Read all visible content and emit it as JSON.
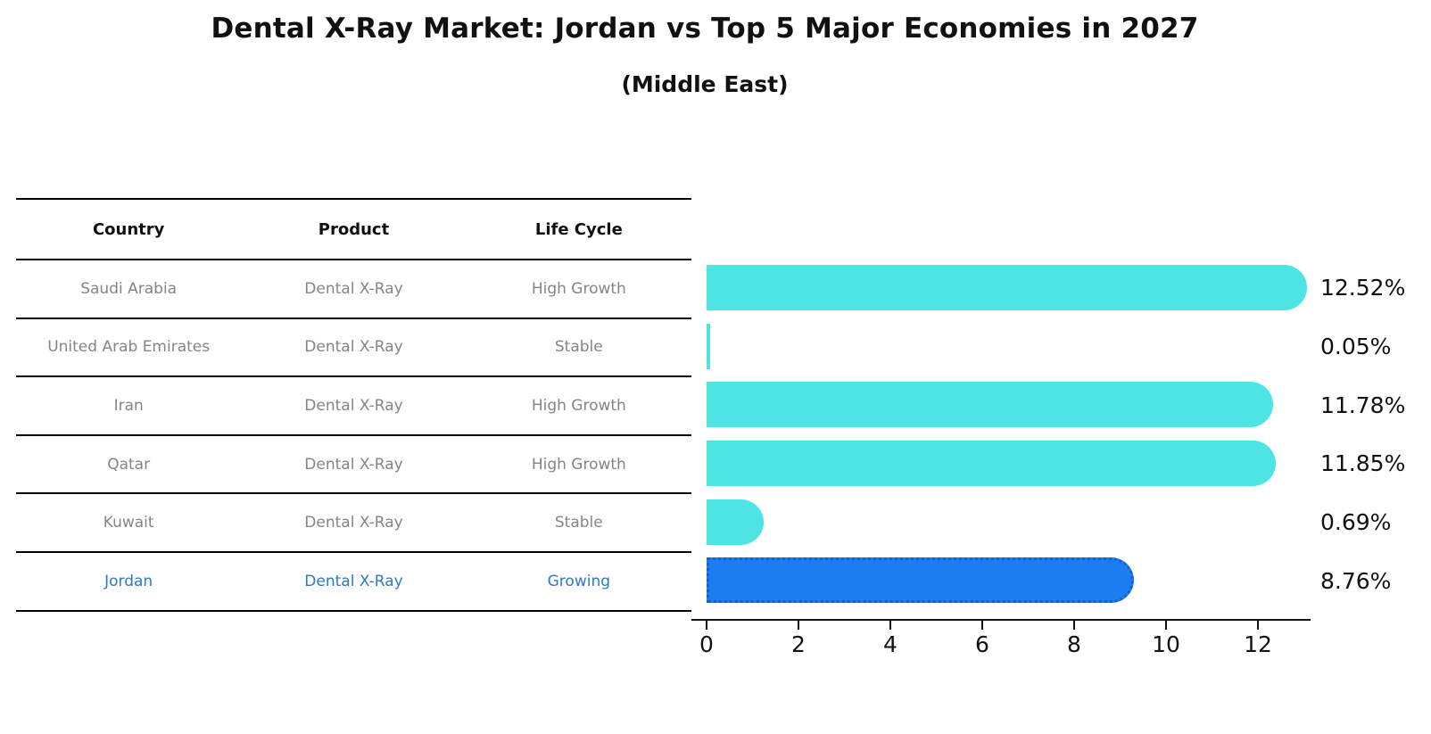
{
  "chart_data": {
    "type": "bar",
    "orientation": "horizontal",
    "title": "Dental X-Ray Market: Jordan vs Top 5 Major Economies in 2027",
    "subtitle": "(Middle East)",
    "categories": [
      "Saudi Arabia",
      "United Arab Emirates",
      "Iran",
      "Qatar",
      "Kuwait",
      "Jordan"
    ],
    "values": [
      12.52,
      0.05,
      11.78,
      11.85,
      0.69,
      8.76
    ],
    "value_labels": [
      "12.52%",
      "0.05%",
      "11.78%",
      "11.85%",
      "0.69%",
      "8.76%"
    ],
    "xlabel": "",
    "ylabel": "",
    "xlim": [
      0,
      13.1
    ],
    "xticks": [
      0,
      2,
      4,
      6,
      8,
      10,
      12
    ],
    "grid": false,
    "legend": false,
    "highlight_index": 5
  },
  "table": {
    "headers": [
      "Country",
      "Product",
      "Life Cycle"
    ],
    "rows": [
      {
        "country": "Saudi Arabia",
        "product": "Dental X-Ray",
        "life_cycle": "High Growth",
        "highlighted": false
      },
      {
        "country": "United Arab Emirates",
        "product": "Dental X-Ray",
        "life_cycle": "Stable",
        "highlighted": false
      },
      {
        "country": "Iran",
        "product": "Dental X-Ray",
        "life_cycle": "High Growth",
        "highlighted": false
      },
      {
        "country": "Qatar",
        "product": "Dental X-Ray",
        "life_cycle": "High Growth",
        "highlighted": false
      },
      {
        "country": "Kuwait",
        "product": "Dental X-Ray",
        "life_cycle": "Stable",
        "highlighted": false
      },
      {
        "country": "Jordan",
        "product": "Dental X-Ray",
        "life_cycle": "Growing",
        "highlighted": true
      }
    ]
  },
  "colors": {
    "bar": "#4ee4e4",
    "highlight_bar": "#1d7df0",
    "highlight_bar_border": "#135fd0",
    "row_text": "#858585",
    "highlight_text": "#2e78c8",
    "text": "#111111"
  }
}
